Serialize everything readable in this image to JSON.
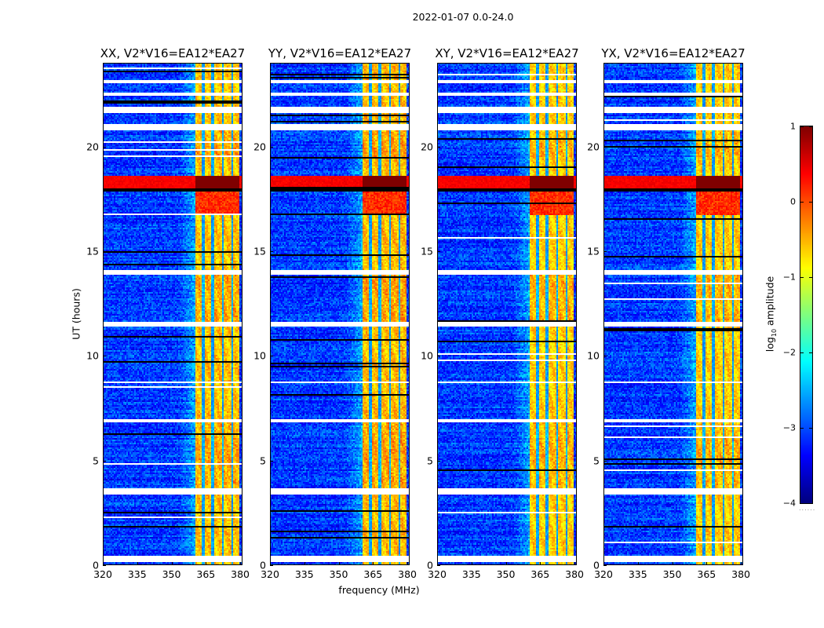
{
  "figure": {
    "suptitle": "2022-01-07 0.0-24.0",
    "xlabel": "frequency (MHz)",
    "ylabel": "UT (hours)",
    "colorbar_label_prefix": "log",
    "colorbar_label_sub": "10",
    "colorbar_label_suffix": " amplitude",
    "colorbar_dots": "......"
  },
  "chart_data": {
    "type": "heatmap",
    "title": "2022-01-07 0.0-24.0",
    "xlabel": "frequency (MHz)",
    "ylabel": "UT (hours)",
    "xlim": [
      320,
      381
    ],
    "ylim": [
      0,
      24
    ],
    "xticks": [
      320,
      335,
      350,
      365,
      380
    ],
    "xtick_labels": [
      "320",
      "335",
      "350",
      "365",
      "380"
    ],
    "yticks": [
      0,
      5,
      10,
      15,
      20
    ],
    "ytick_labels": [
      "0",
      "5",
      "10",
      "15",
      "20"
    ],
    "colormap": "jet",
    "color_range": [
      -4,
      1
    ],
    "colorbar_ticks": [
      1,
      0,
      -1,
      -2,
      -3,
      -4
    ],
    "colorbar_tick_labels": [
      "1",
      "0",
      "−1",
      "−2",
      "−3",
      "−4"
    ],
    "colorbar_label": "log10 amplitude",
    "panels": [
      {
        "title": "XX, V2*V16=EA12*EA27",
        "pol": "XX",
        "baseline": "V2*V16=EA12*EA27",
        "rfi_level": -0.6
      },
      {
        "title": "YY, V2*V16=EA12*EA27",
        "pol": "YY",
        "baseline": "V2*V16=EA12*EA27",
        "rfi_level": -0.55
      },
      {
        "title": "XY, V2*V16=EA12*EA27",
        "pol": "XY",
        "baseline": "V2*V16=EA12*EA27",
        "rfi_level": -0.65
      },
      {
        "title": "YX, V2*V16=EA12*EA27",
        "pol": "YX",
        "baseline": "V2*V16=EA12*EA27",
        "rfi_level": -0.65
      }
    ],
    "background_level_log10": -3.1,
    "rfi_band_mhz": [
      360.5,
      379.5
    ],
    "rfi_subband_gaps_mhz": [
      364,
      368,
      372.5,
      376.5
    ],
    "strong_event_ut": [
      18.0,
      18.6
    ],
    "strong_event_level_log10": 0.6,
    "flagged_gaps_ut": [
      [
        0.15,
        0.45
      ],
      [
        3.4,
        3.7
      ],
      [
        6.8,
        7.0
      ],
      [
        8.7,
        8.8
      ],
      [
        11.4,
        11.6
      ],
      [
        13.9,
        14.1
      ],
      [
        20.8,
        21.1
      ],
      [
        21.6,
        21.9
      ],
      [
        22.4,
        22.6
      ],
      [
        23.0,
        23.2
      ]
    ],
    "noisy_rows_ut": [
      [
        1.4,
        3.2
      ],
      [
        17.5,
        18.0
      ],
      [
        18.8,
        19.5
      ]
    ],
    "narrowband_line_ut": [
      15.1,
      16.5
    ]
  }
}
